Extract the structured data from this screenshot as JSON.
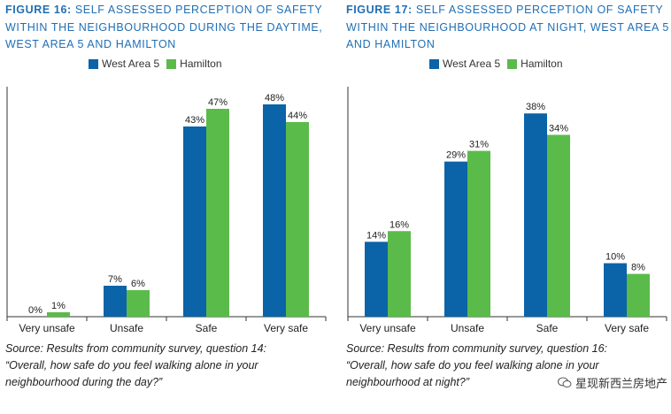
{
  "figures": [
    {
      "fig_label": "FIGURE 16:",
      "title_rest": " SELF ASSESSED PERCEPTION OF SAFETY WITHIN THE NEIGHBOURHOOD DURING THE DAYTIME, WEST AREA 5 AND HAMILTON",
      "source_lines": [
        "Source: Results from community survey, question 14:",
        "“Overall, how safe do you feel walking alone in your",
        "neighbourhood during the day?”"
      ]
    },
    {
      "fig_label": "FIGURE 17:",
      "title_rest": " SELF ASSESSED PERCEPTION OF SAFETY WITHIN THE NEIGHBOURHOOD AT NIGHT, WEST AREA 5 AND HAMILTON",
      "source_lines": [
        "Source: Results from community survey, question 16:",
        "“Overall, how safe do you feel walking alone in your",
        "neighbourhood at night?”"
      ]
    }
  ],
  "colors": {
    "west_area_5": "#0b63a8",
    "hamilton": "#5bbb4a",
    "title": "#1f6fb5"
  },
  "chart_data": [
    {
      "type": "bar",
      "title": "FIGURE 16: SELF ASSESSED PERCEPTION OF SAFETY WITHIN THE NEIGHBOURHOOD DURING THE DAYTIME, WEST AREA 5 AND HAMILTON",
      "categories": [
        "Very unsafe",
        "Unsafe",
        "Safe",
        "Very safe"
      ],
      "series": [
        {
          "name": "West Area 5",
          "values": [
            0,
            7,
            43,
            48
          ],
          "labels": [
            "0%",
            "7%",
            "43%",
            "48%"
          ]
        },
        {
          "name": "Hamilton",
          "values": [
            1,
            6,
            47,
            44
          ],
          "labels": [
            "1%",
            "6%",
            "47%",
            "44%"
          ]
        }
      ],
      "unit": "%",
      "ylim": [
        0,
        52
      ],
      "grid": false,
      "legend": "top"
    },
    {
      "type": "bar",
      "title": "FIGURE 17: SELF ASSESSED PERCEPTION OF SAFETY WITHIN THE NEIGHBOURHOOD AT NIGHT, WEST AREA 5 AND HAMILTON",
      "categories": [
        "Very unsafe",
        "Unsafe",
        "Safe",
        "Very safe"
      ],
      "series": [
        {
          "name": "West Area 5",
          "values": [
            14,
            29,
            38,
            10
          ],
          "labels": [
            "14%",
            "29%",
            "38%",
            "10%"
          ]
        },
        {
          "name": "Hamilton",
          "values": [
            16,
            31,
            34,
            8
          ],
          "labels": [
            "16%",
            "31%",
            "34%",
            "8%"
          ]
        }
      ],
      "unit": "%",
      "ylim": [
        0,
        43
      ],
      "grid": false,
      "legend": "top"
    }
  ],
  "watermark": {
    "text": "星现新西兰房地产",
    "icon": "wechat-icon"
  }
}
